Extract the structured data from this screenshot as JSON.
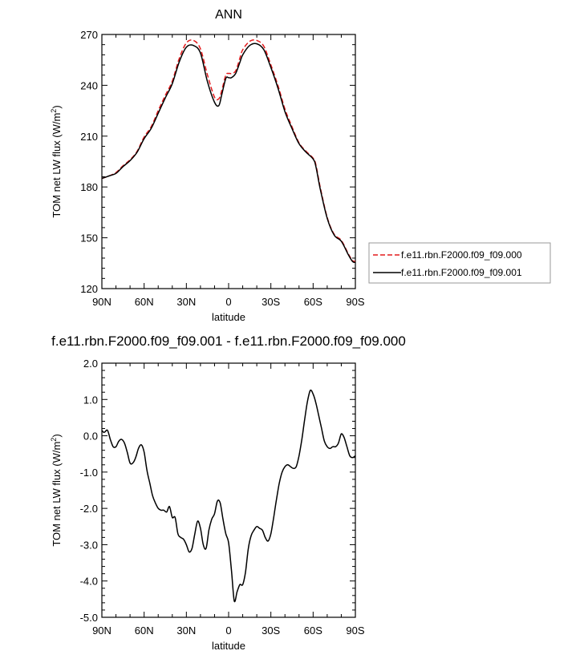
{
  "chart_data": [
    {
      "type": "line",
      "title": "ANN",
      "xlabel": "latitude",
      "ylabel": "TOM net LW flux (W/m",
      "ylabel_sup": "2",
      "ylabel_end": ")",
      "x_tick_labels": [
        "90N",
        "60N",
        "30N",
        "0",
        "30S",
        "60S",
        "90S"
      ],
      "x_tick_values": [
        90,
        60,
        30,
        0,
        -30,
        -60,
        -90
      ],
      "xlim": [
        90,
        -90
      ],
      "ylim": [
        120,
        270
      ],
      "y_ticks": [
        "120",
        "150",
        "180",
        "210",
        "240",
        "270"
      ],
      "legend_placement": "right",
      "series": [
        {
          "name": "f.e11.rbn.F2000.f09_f09.000",
          "color": "#e31a1c",
          "dash": "dashed",
          "x": [
            90,
            85,
            80,
            75,
            70,
            65,
            60,
            55,
            50,
            45,
            40,
            35,
            30,
            25,
            20,
            15,
            10,
            7,
            5,
            2,
            0,
            -2,
            -5,
            -8,
            -10,
            -15,
            -20,
            -25,
            -30,
            -35,
            -40,
            -45,
            -50,
            -55,
            -60,
            -62,
            -65,
            -70,
            -75,
            -80,
            -85,
            -88,
            -90
          ],
          "y": [
            185,
            186.5,
            188.5,
            192.5,
            196,
            201,
            209.5,
            215.5,
            225,
            234,
            242.5,
            256,
            265,
            266.5,
            261.5,
            246,
            233,
            232,
            236.5,
            246,
            247,
            247,
            248.5,
            256,
            261,
            266,
            266.5,
            263,
            252,
            240,
            226,
            215.5,
            206,
            201,
            197,
            193,
            180,
            162,
            152,
            148.5,
            140.5,
            136.5,
            136
          ]
        },
        {
          "name": "f.e11.rbn.F2000.f09_f09.001",
          "color": "#000000",
          "dash": "solid",
          "x": [
            90,
            85,
            80,
            75,
            70,
            65,
            60,
            55,
            50,
            45,
            40,
            35,
            30,
            25,
            20,
            15,
            10,
            7,
            5,
            2,
            0,
            -2,
            -5,
            -8,
            -10,
            -15,
            -20,
            -25,
            -30,
            -35,
            -40,
            -45,
            -50,
            -55,
            -60,
            -62,
            -65,
            -70,
            -75,
            -80,
            -85,
            -88,
            -90
          ],
          "y": [
            185,
            186.5,
            188,
            192,
            195.5,
            200.5,
            208.5,
            214.5,
            223.5,
            232.5,
            241,
            254,
            262.5,
            263.5,
            259,
            242,
            230,
            228,
            234,
            244,
            244.5,
            244.5,
            247,
            253.5,
            258,
            263.5,
            264.5,
            261,
            250.5,
            238.5,
            224.5,
            214.5,
            205.5,
            200.5,
            196.5,
            192,
            179,
            161.5,
            151.5,
            148,
            140,
            136,
            135.5
          ]
        }
      ]
    },
    {
      "type": "line",
      "title": "f.e11.rbn.F2000.f09_f09.001 - f.e11.rbn.F2000.f09_f09.000",
      "xlabel": "latitude",
      "ylabel": "TOM net LW flux (W/m",
      "ylabel_sup": "2",
      "ylabel_end": ")",
      "x_tick_labels": [
        "90N",
        "60N",
        "30N",
        "0",
        "30S",
        "60S",
        "90S"
      ],
      "x_tick_values": [
        90,
        60,
        30,
        0,
        -30,
        -60,
        -90
      ],
      "xlim": [
        90,
        -90
      ],
      "ylim": [
        -5,
        2
      ],
      "y_ticks": [
        "2.0",
        "1.0",
        "0.0",
        "-1.0",
        "-2.0",
        "-3.0",
        "-4.0",
        "-5.0"
      ],
      "y_tick_values": [
        2,
        1,
        0,
        -1,
        -2,
        -3,
        -4,
        -5
      ],
      "series": [
        {
          "color": "#000000",
          "dash": "solid",
          "x": [
            90,
            89,
            88,
            86,
            84,
            82,
            80,
            78,
            76,
            74,
            72,
            70,
            68,
            66,
            64,
            62,
            60,
            58,
            56,
            54,
            52,
            50,
            48,
            46,
            44,
            42,
            40,
            38,
            36,
            34,
            32,
            30,
            28,
            26,
            24,
            22,
            20,
            18,
            16,
            14,
            12,
            10,
            8,
            6,
            4,
            2,
            0,
            -2,
            -4,
            -6,
            -8,
            -10,
            -12,
            -14,
            -16,
            -18,
            -20,
            -22,
            -24,
            -26,
            -28,
            -30,
            -32,
            -34,
            -36,
            -38,
            -40,
            -42,
            -44,
            -46,
            -48,
            -50,
            -52,
            -54,
            -56,
            -58,
            -60,
            -62,
            -64,
            -66,
            -68,
            -70,
            -72,
            -74,
            -76,
            -78,
            -80,
            -82,
            -84,
            -86,
            -88,
            -90
          ],
          "y": [
            0.15,
            0.1,
            0.1,
            0.15,
            -0.1,
            -0.3,
            -0.3,
            -0.15,
            -0.1,
            -0.2,
            -0.45,
            -0.75,
            -0.75,
            -0.6,
            -0.35,
            -0.25,
            -0.45,
            -0.95,
            -1.3,
            -1.65,
            -1.85,
            -2.0,
            -2.05,
            -2.05,
            -2.1,
            -1.95,
            -2.25,
            -2.25,
            -2.7,
            -2.8,
            -2.85,
            -3.0,
            -3.2,
            -3.1,
            -2.7,
            -2.35,
            -2.55,
            -3.0,
            -3.1,
            -2.6,
            -2.3,
            -2.15,
            -1.8,
            -1.85,
            -2.3,
            -2.7,
            -2.95,
            -3.7,
            -4.55,
            -4.3,
            -4.1,
            -4.1,
            -3.75,
            -3.1,
            -2.75,
            -2.6,
            -2.5,
            -2.55,
            -2.6,
            -2.8,
            -2.9,
            -2.7,
            -2.25,
            -1.75,
            -1.3,
            -1.0,
            -0.85,
            -0.8,
            -0.85,
            -0.9,
            -0.85,
            -0.55,
            -0.1,
            0.45,
            0.95,
            1.25,
            1.15,
            0.9,
            0.55,
            0.2,
            -0.15,
            -0.3,
            -0.35,
            -0.3,
            -0.3,
            -0.2,
            0.05,
            -0.05,
            -0.3,
            -0.55,
            -0.6,
            -0.55
          ]
        }
      ]
    }
  ]
}
